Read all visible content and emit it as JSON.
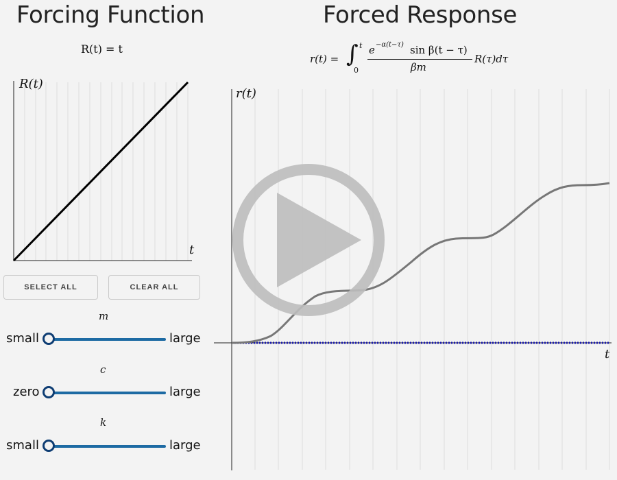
{
  "left_panel": {
    "title": "Forcing Function",
    "formula": "R(t) = t",
    "graph": {
      "y_label": "R(t)",
      "x_label": "t"
    },
    "buttons": {
      "select_all": "SELECT ALL",
      "clear_all": "CLEAR ALL"
    },
    "sliders": [
      {
        "param": "m",
        "min_label": "small",
        "max_label": "large",
        "value": 0
      },
      {
        "param": "c",
        "min_label": "zero",
        "max_label": "large",
        "value": 0
      },
      {
        "param": "k",
        "min_label": "small",
        "max_label": "large",
        "value": 0
      }
    ]
  },
  "right_panel": {
    "title": "Forced Response",
    "formula": {
      "lhs": "r(t) =",
      "integral_upper": "t",
      "integral_lower": "0",
      "numerator": "e",
      "exponent": "−α(t−τ)",
      "numerator_rest": "sin β(t − τ)",
      "denominator": "βm",
      "tail": "R(τ)dτ"
    },
    "graph": {
      "y_label": "r(t)",
      "x_label": "t"
    },
    "play_overlay": {
      "icon": "play-icon",
      "color": "#bdbdbd"
    }
  },
  "colors": {
    "background": "#f3f3f3",
    "forcing_line": "#000000",
    "response_curve": "#777777",
    "baseline_dotted": "#1a1ab0",
    "slider_track": "#1d6aa3",
    "slider_thumb": "#0e3d73",
    "grid": "#dddddd"
  }
}
